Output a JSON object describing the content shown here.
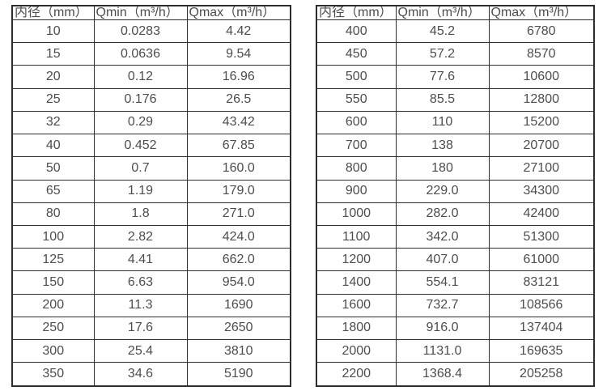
{
  "page": {
    "background_color": "#ffffff",
    "text_color": "#4d4d4d",
    "border_color": "#2e2e2e"
  },
  "tables": [
    {
      "name": "flow-range-table-small-diameters",
      "headers": [
        "内径（mm）",
        "Qmin（m³/h）",
        "Qmax（m³/h）"
      ],
      "rows": [
        [
          "10",
          "0.0283",
          "4.42"
        ],
        [
          "15",
          "0.0636",
          "9.54"
        ],
        [
          "20",
          "0.12",
          "16.96"
        ],
        [
          "25",
          "0.176",
          "26.5"
        ],
        [
          "32",
          "0.29",
          "43.42"
        ],
        [
          "40",
          "0.452",
          "67.85"
        ],
        [
          "50",
          "0.7",
          "160.0"
        ],
        [
          "65",
          "1.19",
          "179.0"
        ],
        [
          "80",
          "1.8",
          "271.0"
        ],
        [
          "100",
          "2.82",
          "424.0"
        ],
        [
          "125",
          "4.41",
          "662.0"
        ],
        [
          "150",
          "6.63",
          "954.0"
        ],
        [
          "200",
          "11.3",
          "1690"
        ],
        [
          "250",
          "17.6",
          "2650"
        ],
        [
          "300",
          "25.4",
          "3810"
        ],
        [
          "350",
          "34.6",
          "5190"
        ]
      ]
    },
    {
      "name": "flow-range-table-large-diameters",
      "headers": [
        "内径（mm）",
        "Qmin（m³/h）",
        "Qmax（m³/h）"
      ],
      "rows": [
        [
          "400",
          "45.2",
          "6780"
        ],
        [
          "450",
          "57.2",
          "8570"
        ],
        [
          "500",
          "77.6",
          "10600"
        ],
        [
          "550",
          "85.5",
          "12800"
        ],
        [
          "600",
          "110",
          "15200"
        ],
        [
          "700",
          "138",
          "20700"
        ],
        [
          "800",
          "180",
          "27100"
        ],
        [
          "900",
          "229.0",
          "34300"
        ],
        [
          "1000",
          "282.0",
          "42400"
        ],
        [
          "1100",
          "342.0",
          "51300"
        ],
        [
          "1200",
          "407.0",
          "61000"
        ],
        [
          "1400",
          "554.1",
          "83121"
        ],
        [
          "1600",
          "732.7",
          "108566"
        ],
        [
          "1800",
          "916.0",
          "137404"
        ],
        [
          "2000",
          "1131.0",
          "169635"
        ],
        [
          "2200",
          "1368.4",
          "205258"
        ]
      ]
    }
  ]
}
